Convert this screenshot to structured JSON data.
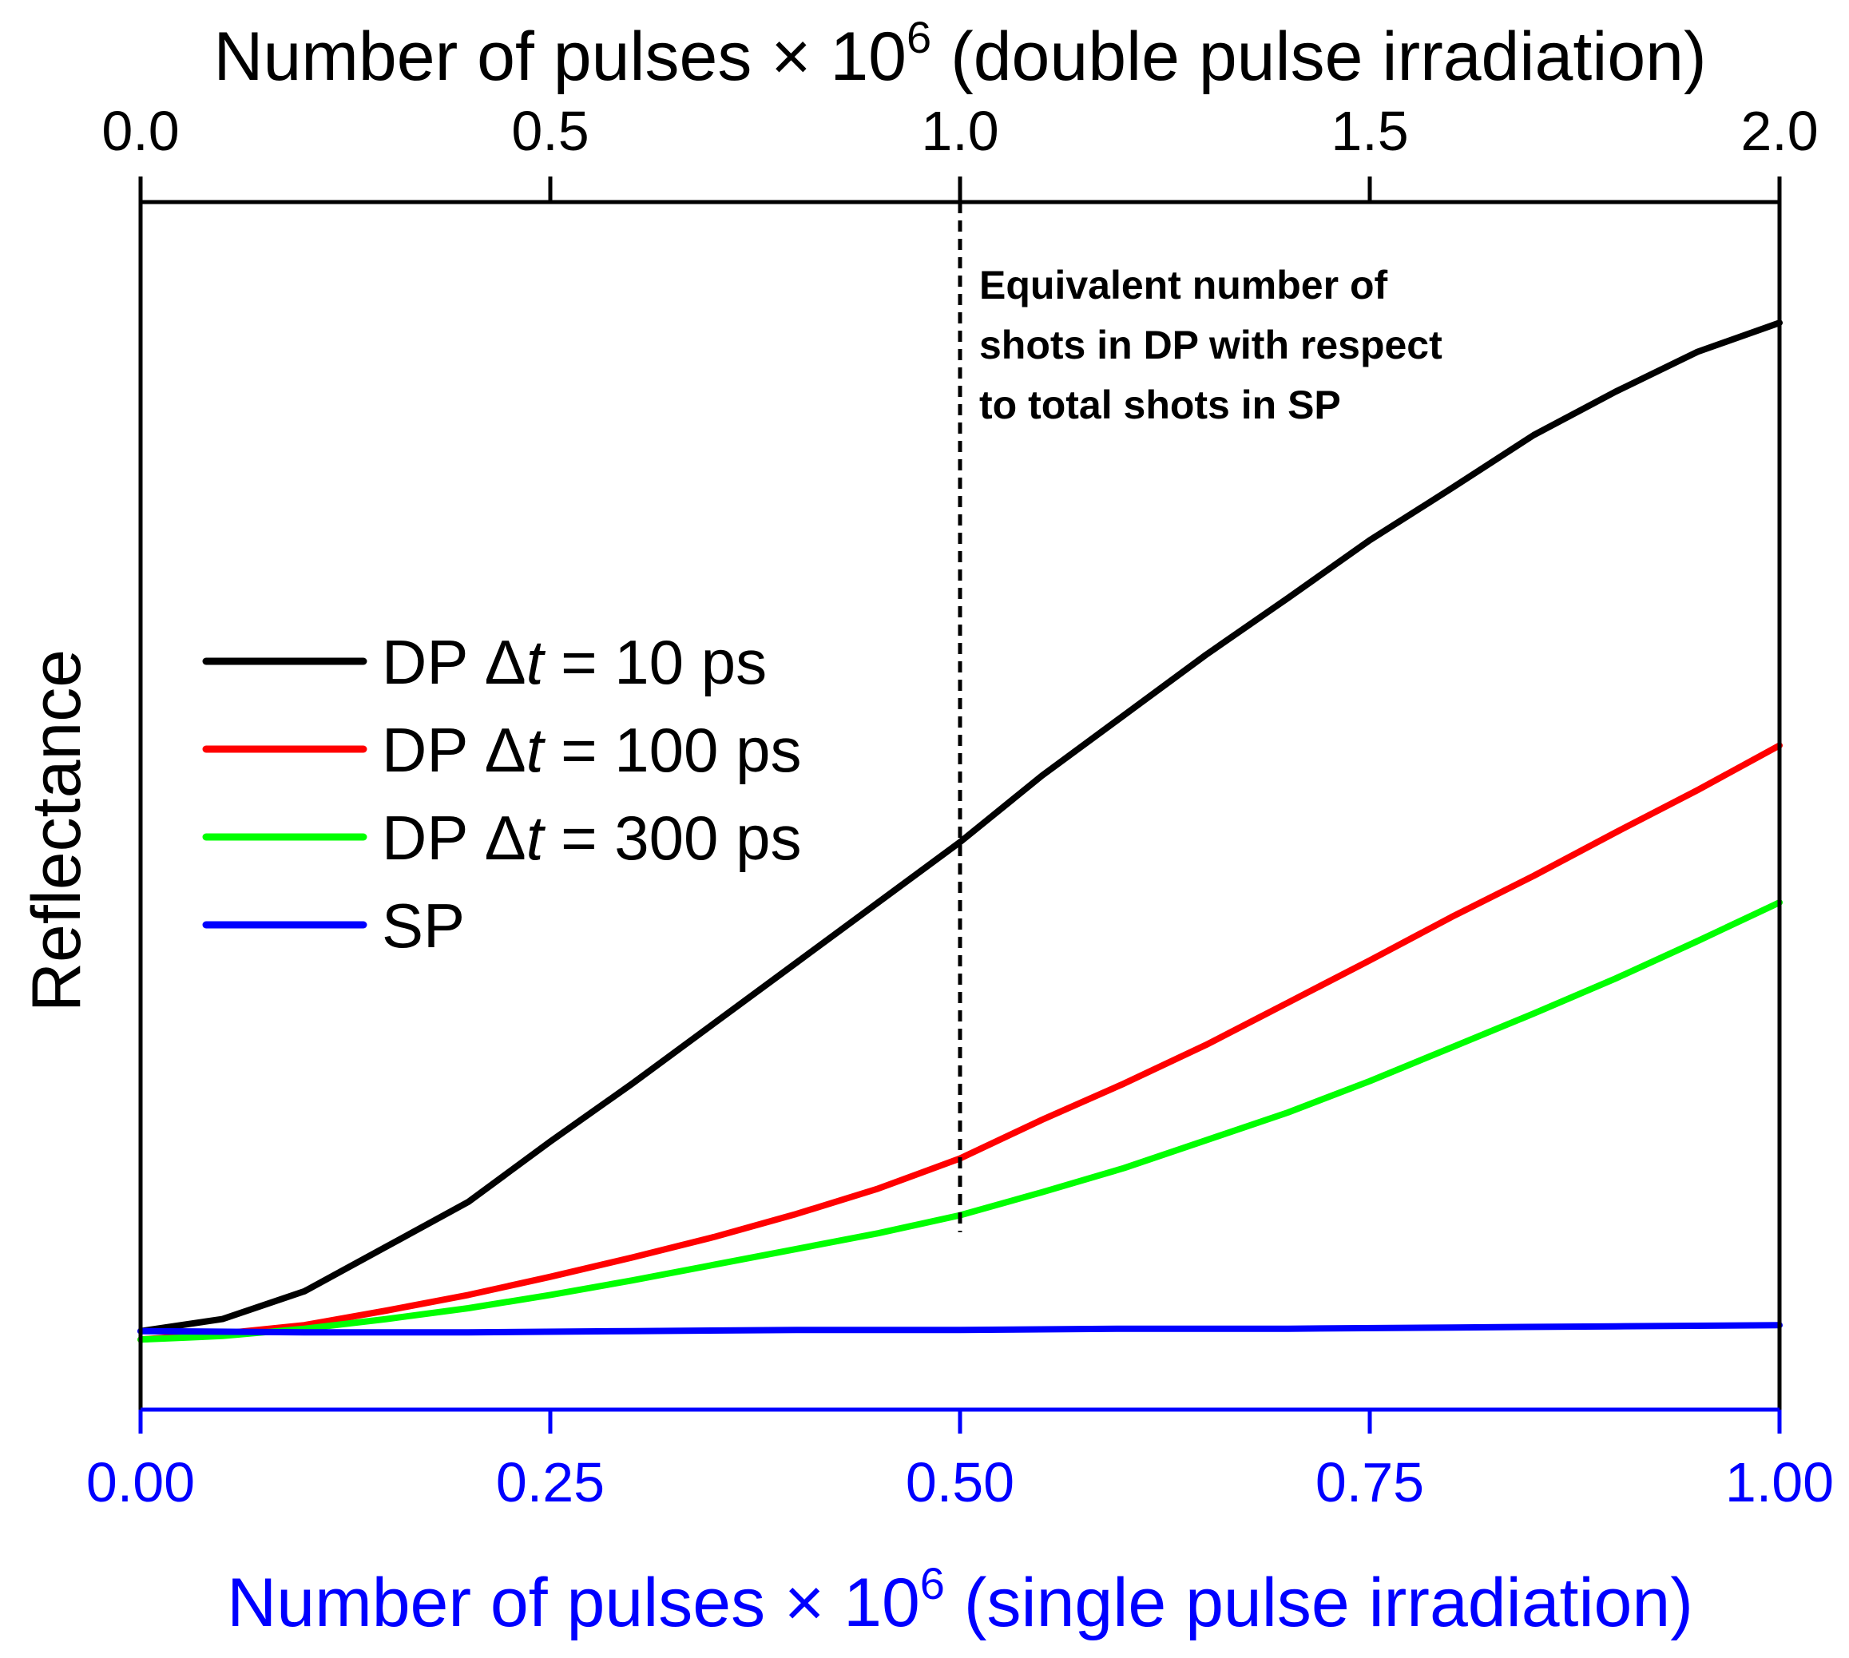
{
  "chart_data": {
    "type": "line",
    "ylabel": "Reflectance",
    "bottom_axis": {
      "title_main": "Number of pulses × 10",
      "title_sup": "6",
      "title_tail": " (single pulse irradiation)",
      "xlim": [
        0,
        1.0
      ],
      "ticks": [
        0.0,
        0.25,
        0.5,
        0.75,
        1.0
      ],
      "tick_labels": [
        "0.00",
        "0.25",
        "0.50",
        "0.75",
        "1.00"
      ],
      "color": "#0000ff"
    },
    "top_axis": {
      "title_main": "Number of pulses × 10",
      "title_sup": "6",
      "title_tail": " (double pulse irradiation)",
      "xlim": [
        0,
        2.0
      ],
      "ticks": [
        0.0,
        0.5,
        1.0,
        1.5,
        2.0
      ],
      "tick_labels": [
        "0.0",
        "0.5",
        "1.0",
        "1.5",
        "2.0"
      ],
      "color": "#000000"
    },
    "ylim": [
      0,
      1
    ],
    "annotation": {
      "lines": [
        "Equivalent number of",
        "shots in DP with respect",
        "to total shots in SP"
      ],
      "x": 0.5
    },
    "legend_position": "center-left",
    "series": [
      {
        "name": "DP Δt = 10 ps",
        "legend_prefix": "DP ",
        "legend_delta": "Δ",
        "legend_t": "t",
        "legend_suffix": " = 10 ps",
        "color": "#000000",
        "x": [
          0.0,
          0.05,
          0.1,
          0.15,
          0.2,
          0.25,
          0.3,
          0.35,
          0.4,
          0.45,
          0.5,
          0.55,
          0.6,
          0.65,
          0.7,
          0.75,
          0.8,
          0.85,
          0.9,
          0.95,
          1.0
        ],
        "y": [
          0.065,
          0.075,
          0.098,
          0.135,
          0.172,
          0.222,
          0.27,
          0.32,
          0.37,
          0.42,
          0.47,
          0.525,
          0.575,
          0.625,
          0.672,
          0.72,
          0.763,
          0.807,
          0.843,
          0.876,
          0.9
        ]
      },
      {
        "name": "DP Δt = 100 ps",
        "legend_prefix": "DP ",
        "legend_delta": "Δ",
        "legend_t": "t",
        "legend_suffix": " = 100 ps",
        "color": "#ff0000",
        "x": [
          0.0,
          0.05,
          0.1,
          0.15,
          0.2,
          0.25,
          0.3,
          0.35,
          0.4,
          0.45,
          0.5,
          0.55,
          0.6,
          0.65,
          0.7,
          0.75,
          0.8,
          0.85,
          0.9,
          0.95,
          1.0
        ],
        "y": [
          0.058,
          0.063,
          0.07,
          0.082,
          0.095,
          0.11,
          0.126,
          0.143,
          0.162,
          0.183,
          0.208,
          0.24,
          0.27,
          0.302,
          0.337,
          0.372,
          0.408,
          0.442,
          0.478,
          0.513,
          0.55
        ]
      },
      {
        "name": "DP Δt = 300 ps",
        "legend_prefix": "DP ",
        "legend_delta": "Δ",
        "legend_t": "t",
        "legend_suffix": " = 300 ps",
        "color": "#00ff00",
        "x": [
          0.0,
          0.05,
          0.1,
          0.15,
          0.2,
          0.25,
          0.3,
          0.35,
          0.4,
          0.45,
          0.5,
          0.55,
          0.6,
          0.65,
          0.7,
          0.75,
          0.8,
          0.85,
          0.9,
          0.95,
          1.0
        ],
        "y": [
          0.058,
          0.061,
          0.067,
          0.075,
          0.084,
          0.095,
          0.107,
          0.12,
          0.133,
          0.146,
          0.161,
          0.18,
          0.2,
          0.223,
          0.246,
          0.272,
          0.3,
          0.328,
          0.357,
          0.388,
          0.42
        ]
      },
      {
        "name": "SP",
        "legend_prefix": "SP",
        "legend_delta": "",
        "legend_t": "",
        "legend_suffix": "",
        "color": "#0000ff",
        "x": [
          0.0,
          0.1,
          0.2,
          0.3,
          0.4,
          0.5,
          0.6,
          0.7,
          0.8,
          0.9,
          1.0
        ],
        "y": [
          0.065,
          0.064,
          0.064,
          0.065,
          0.066,
          0.066,
          0.067,
          0.067,
          0.068,
          0.069,
          0.07
        ]
      }
    ]
  }
}
